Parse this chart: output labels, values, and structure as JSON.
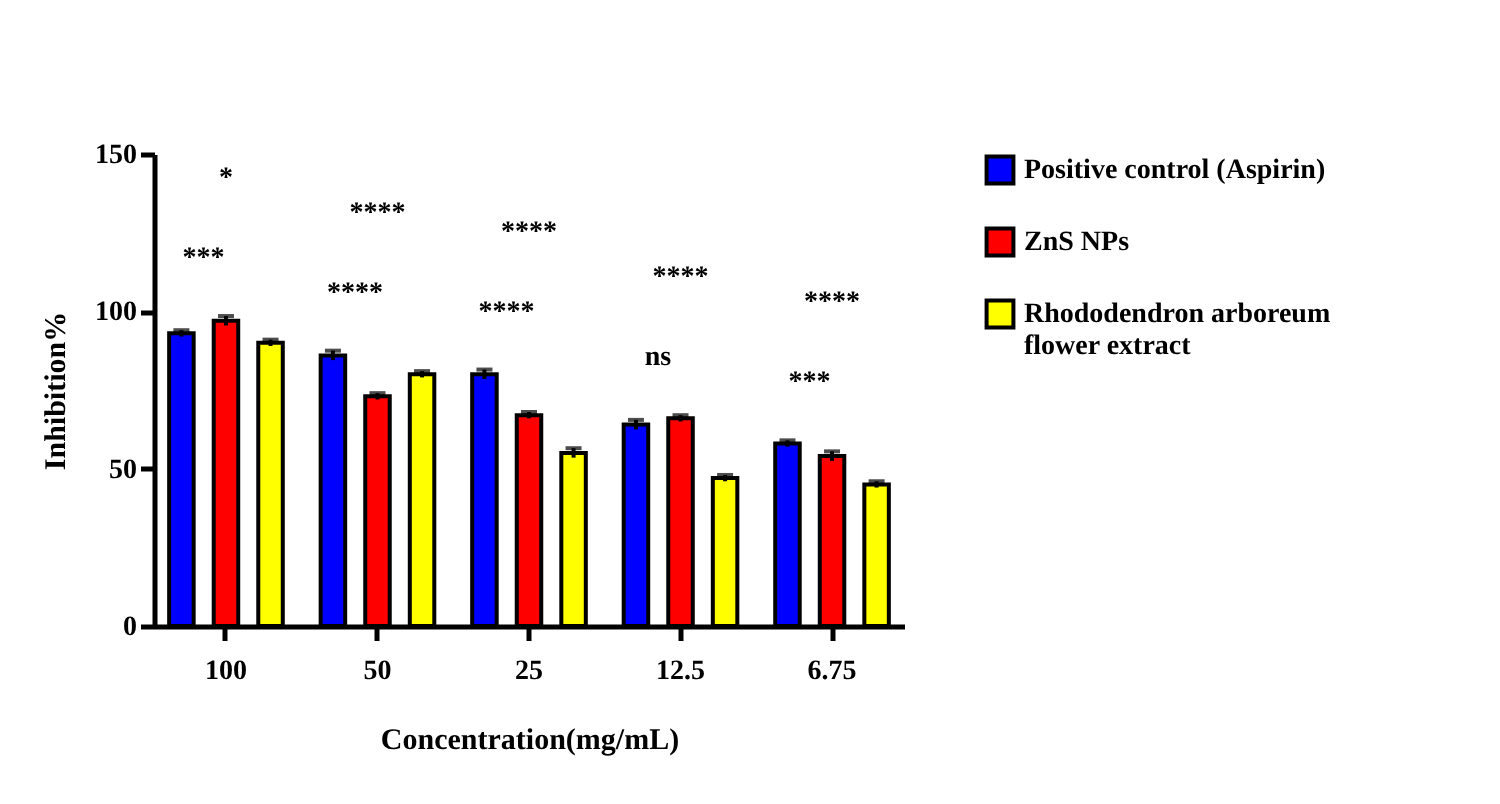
{
  "chart_data": {
    "type": "bar",
    "xlabel": "Concentration(mg/mL)",
    "ylabel": "Inhibition%",
    "categories": [
      "100",
      "50",
      "25",
      "12.5",
      "6.75"
    ],
    "series": [
      {
        "name": "Positive control (Aspirin)",
        "color": "#0000ff",
        "values": [
          93,
          86,
          80,
          64,
          58
        ],
        "errors": [
          1,
          1.5,
          1.5,
          1.5,
          1
        ]
      },
      {
        "name": "ZnS NPs",
        "color": "#ff0000",
        "values": [
          97,
          73,
          67,
          66,
          54
        ],
        "errors": [
          1.5,
          1,
          1,
          1,
          1.5
        ]
      },
      {
        "name": "Rhododendron arboreum flower extract",
        "color": "#ffff00",
        "values": [
          90,
          80,
          55,
          47,
          45
        ],
        "errors": [
          1,
          1,
          1.5,
          1,
          1
        ]
      }
    ],
    "annotations": [
      "***",
      "*",
      "****",
      "****",
      "****",
      "****",
      "ns",
      "****",
      "***",
      "****"
    ],
    "ylim": [
      0,
      150
    ],
    "yticks": [
      0,
      50,
      100,
      150
    ],
    "grid": false,
    "legend": "right"
  }
}
